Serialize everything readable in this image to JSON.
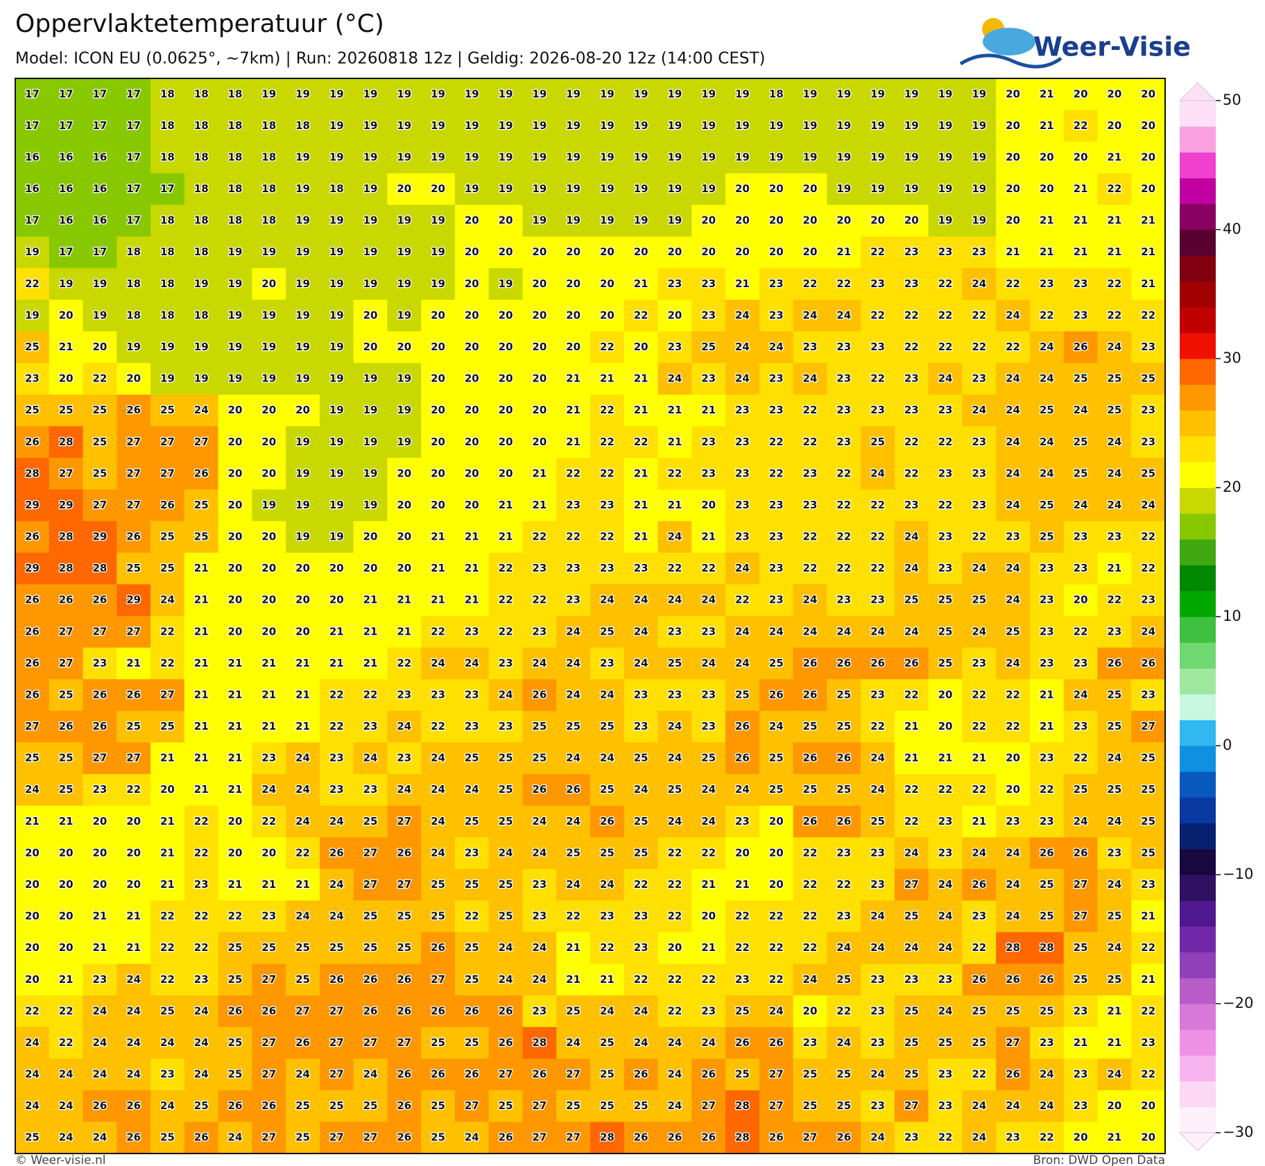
{
  "chart_data": {
    "type": "heatmap",
    "title": "Oppervlaktetemperatuur (°C)",
    "subtitle": "Model: ICON EU (0.0625°, ~7km)  |  Run: 20260818 12z  |  Geldig: 2026-08-20 12z (14:00 CEST)",
    "logo": "Weer-Visie",
    "footer_left": "© Weer-visie.nl",
    "footer_right": "Bron: DWD Open Data",
    "values": [
      [
        17,
        17,
        17,
        17,
        18,
        18,
        18,
        19,
        19,
        19,
        19,
        19,
        19,
        19,
        19,
        19,
        19,
        19,
        19,
        19,
        19,
        19,
        18,
        19,
        19,
        19,
        19,
        19,
        19,
        20,
        21,
        20,
        20,
        20
      ],
      [
        17,
        17,
        17,
        17,
        18,
        18,
        18,
        18,
        18,
        19,
        19,
        19,
        19,
        19,
        19,
        19,
        19,
        19,
        19,
        19,
        19,
        19,
        19,
        19,
        19,
        19,
        19,
        19,
        19,
        20,
        21,
        22,
        20,
        20
      ],
      [
        16,
        16,
        16,
        17,
        18,
        18,
        18,
        18,
        19,
        19,
        19,
        19,
        19,
        19,
        19,
        19,
        19,
        19,
        19,
        19,
        19,
        19,
        19,
        19,
        19,
        19,
        19,
        19,
        19,
        20,
        20,
        20,
        21,
        20
      ],
      [
        16,
        16,
        16,
        17,
        17,
        18,
        18,
        18,
        19,
        18,
        19,
        20,
        20,
        19,
        19,
        19,
        19,
        19,
        19,
        19,
        19,
        20,
        20,
        20,
        19,
        19,
        19,
        19,
        19,
        20,
        20,
        21,
        22,
        20
      ],
      [
        17,
        16,
        16,
        17,
        18,
        18,
        18,
        18,
        19,
        19,
        19,
        19,
        19,
        20,
        20,
        19,
        19,
        19,
        19,
        19,
        20,
        20,
        20,
        20,
        20,
        20,
        20,
        19,
        19,
        20,
        21,
        21,
        21,
        21
      ],
      [
        19,
        17,
        17,
        18,
        18,
        18,
        19,
        19,
        19,
        19,
        19,
        19,
        19,
        20,
        20,
        20,
        20,
        20,
        20,
        20,
        20,
        20,
        20,
        20,
        21,
        22,
        23,
        23,
        23,
        21,
        21,
        21,
        21,
        21
      ],
      [
        22,
        19,
        19,
        18,
        18,
        19,
        19,
        20,
        19,
        19,
        19,
        19,
        19,
        20,
        19,
        20,
        20,
        20,
        21,
        23,
        23,
        21,
        23,
        22,
        22,
        23,
        23,
        22,
        24,
        22,
        23,
        23,
        22,
        21
      ],
      [
        19,
        20,
        19,
        18,
        18,
        18,
        19,
        19,
        19,
        19,
        20,
        19,
        20,
        20,
        20,
        20,
        20,
        20,
        22,
        20,
        23,
        24,
        23,
        24,
        24,
        22,
        22,
        22,
        22,
        24,
        22,
        23,
        22,
        22
      ],
      [
        25,
        21,
        20,
        19,
        19,
        19,
        19,
        19,
        19,
        19,
        20,
        20,
        20,
        20,
        20,
        20,
        20,
        22,
        20,
        23,
        25,
        24,
        24,
        23,
        23,
        23,
        22,
        22,
        22,
        22,
        24,
        26,
        24,
        23
      ],
      [
        23,
        20,
        22,
        20,
        19,
        19,
        19,
        19,
        19,
        19,
        19,
        19,
        20,
        20,
        20,
        20,
        21,
        21,
        21,
        24,
        23,
        24,
        23,
        24,
        23,
        22,
        23,
        24,
        23,
        24,
        24,
        25,
        25,
        25
      ],
      [
        25,
        25,
        25,
        26,
        25,
        24,
        20,
        20,
        20,
        19,
        19,
        19,
        20,
        20,
        20,
        20,
        21,
        22,
        21,
        21,
        21,
        23,
        23,
        22,
        23,
        23,
        23,
        23,
        24,
        24,
        25,
        24,
        25,
        23
      ],
      [
        26,
        28,
        25,
        27,
        27,
        27,
        20,
        20,
        19,
        19,
        19,
        19,
        20,
        20,
        20,
        20,
        21,
        22,
        22,
        21,
        23,
        23,
        22,
        22,
        23,
        25,
        22,
        22,
        23,
        24,
        24,
        25,
        24,
        23
      ],
      [
        28,
        27,
        25,
        27,
        27,
        26,
        20,
        20,
        19,
        19,
        19,
        20,
        20,
        20,
        20,
        21,
        22,
        22,
        21,
        22,
        23,
        23,
        22,
        23,
        22,
        24,
        22,
        23,
        23,
        24,
        24,
        25,
        24,
        25
      ],
      [
        29,
        29,
        27,
        27,
        26,
        25,
        20,
        19,
        19,
        19,
        19,
        20,
        20,
        20,
        21,
        21,
        23,
        23,
        21,
        21,
        20,
        23,
        23,
        23,
        22,
        22,
        23,
        22,
        23,
        24,
        25,
        24,
        24,
        24
      ],
      [
        26,
        28,
        29,
        26,
        25,
        25,
        20,
        20,
        19,
        19,
        20,
        20,
        21,
        21,
        21,
        22,
        22,
        22,
        21,
        24,
        21,
        23,
        23,
        22,
        22,
        22,
        24,
        23,
        22,
        23,
        25,
        23,
        23,
        22
      ],
      [
        29,
        28,
        28,
        25,
        25,
        21,
        20,
        20,
        20,
        20,
        20,
        20,
        21,
        21,
        22,
        23,
        23,
        23,
        23,
        22,
        22,
        24,
        23,
        22,
        22,
        22,
        24,
        23,
        24,
        24,
        23,
        23,
        21,
        22
      ],
      [
        26,
        26,
        26,
        29,
        24,
        21,
        20,
        20,
        20,
        20,
        21,
        21,
        21,
        21,
        22,
        22,
        23,
        24,
        24,
        24,
        24,
        22,
        23,
        24,
        23,
        23,
        25,
        25,
        25,
        24,
        23,
        20,
        22,
        23
      ],
      [
        26,
        27,
        27,
        27,
        22,
        21,
        20,
        20,
        20,
        21,
        21,
        21,
        22,
        23,
        22,
        23,
        24,
        25,
        24,
        23,
        23,
        24,
        24,
        24,
        24,
        24,
        24,
        25,
        24,
        25,
        23,
        22,
        23,
        24
      ],
      [
        26,
        27,
        23,
        21,
        22,
        21,
        21,
        21,
        21,
        21,
        21,
        22,
        24,
        24,
        23,
        24,
        24,
        23,
        24,
        25,
        24,
        24,
        25,
        26,
        26,
        26,
        26,
        25,
        23,
        24,
        23,
        23,
        26,
        26
      ],
      [
        26,
        25,
        26,
        26,
        27,
        21,
        21,
        21,
        21,
        22,
        22,
        23,
        23,
        23,
        24,
        26,
        24,
        24,
        23,
        23,
        23,
        25,
        26,
        26,
        25,
        23,
        22,
        20,
        22,
        22,
        21,
        24,
        25,
        23
      ],
      [
        27,
        26,
        26,
        25,
        25,
        21,
        21,
        21,
        21,
        22,
        23,
        24,
        22,
        23,
        23,
        25,
        25,
        25,
        23,
        24,
        23,
        26,
        24,
        25,
        25,
        22,
        21,
        20,
        22,
        22,
        21,
        23,
        25,
        27
      ],
      [
        25,
        25,
        27,
        27,
        21,
        21,
        21,
        23,
        24,
        23,
        24,
        23,
        24,
        25,
        25,
        25,
        24,
        24,
        25,
        24,
        25,
        26,
        25,
        26,
        26,
        24,
        21,
        21,
        21,
        20,
        23,
        22,
        24,
        25
      ],
      [
        24,
        25,
        23,
        22,
        20,
        21,
        21,
        24,
        24,
        23,
        23,
        24,
        24,
        24,
        25,
        26,
        26,
        25,
        24,
        25,
        24,
        24,
        25,
        25,
        25,
        24,
        22,
        22,
        22,
        20,
        22,
        25,
        25,
        25
      ],
      [
        21,
        21,
        20,
        20,
        21,
        22,
        20,
        22,
        24,
        24,
        25,
        27,
        24,
        25,
        25,
        24,
        24,
        26,
        25,
        24,
        24,
        23,
        20,
        26,
        26,
        25,
        22,
        23,
        21,
        23,
        23,
        24,
        24,
        25
      ],
      [
        20,
        20,
        20,
        20,
        21,
        22,
        20,
        20,
        22,
        26,
        27,
        26,
        24,
        23,
        24,
        24,
        25,
        25,
        25,
        22,
        22,
        20,
        20,
        22,
        23,
        23,
        24,
        23,
        24,
        24,
        26,
        26,
        23,
        25
      ],
      [
        20,
        20,
        20,
        20,
        21,
        23,
        21,
        21,
        21,
        24,
        27,
        27,
        25,
        25,
        25,
        23,
        24,
        24,
        22,
        22,
        21,
        21,
        20,
        22,
        22,
        23,
        27,
        24,
        26,
        24,
        25,
        27,
        24,
        23
      ],
      [
        20,
        20,
        21,
        21,
        22,
        22,
        22,
        23,
        24,
        24,
        25,
        25,
        25,
        22,
        25,
        23,
        22,
        23,
        23,
        22,
        20,
        22,
        22,
        22,
        23,
        24,
        25,
        24,
        23,
        24,
        25,
        27,
        25,
        21
      ],
      [
        20,
        20,
        21,
        21,
        22,
        22,
        25,
        25,
        25,
        25,
        25,
        25,
        26,
        25,
        24,
        24,
        21,
        22,
        23,
        20,
        21,
        22,
        22,
        22,
        24,
        24,
        24,
        24,
        22,
        28,
        28,
        25,
        24,
        22
      ],
      [
        20,
        21,
        23,
        24,
        22,
        23,
        25,
        27,
        25,
        26,
        26,
        26,
        27,
        25,
        24,
        24,
        21,
        21,
        22,
        22,
        22,
        23,
        22,
        24,
        25,
        23,
        23,
        23,
        26,
        26,
        26,
        25,
        25,
        21
      ],
      [
        22,
        22,
        24,
        24,
        25,
        24,
        26,
        26,
        27,
        27,
        26,
        26,
        26,
        26,
        26,
        23,
        25,
        24,
        24,
        22,
        23,
        25,
        24,
        20,
        22,
        23,
        25,
        24,
        25,
        25,
        25,
        23,
        21,
        22
      ],
      [
        24,
        22,
        24,
        24,
        24,
        24,
        25,
        27,
        26,
        27,
        27,
        27,
        25,
        25,
        26,
        28,
        24,
        25,
        24,
        24,
        24,
        26,
        26,
        23,
        24,
        23,
        25,
        25,
        25,
        27,
        23,
        21,
        21,
        23
      ],
      [
        24,
        24,
        24,
        24,
        23,
        24,
        25,
        27,
        24,
        27,
        24,
        26,
        26,
        26,
        27,
        26,
        27,
        25,
        26,
        24,
        26,
        25,
        27,
        25,
        25,
        24,
        25,
        23,
        22,
        26,
        24,
        23,
        24,
        22
      ],
      [
        24,
        24,
        26,
        26,
        24,
        25,
        26,
        26,
        25,
        25,
        25,
        26,
        25,
        27,
        25,
        27,
        25,
        25,
        25,
        24,
        27,
        28,
        27,
        25,
        25,
        23,
        27,
        23,
        24,
        24,
        24,
        23,
        20,
        20
      ],
      [
        25,
        24,
        24,
        26,
        25,
        26,
        24,
        27,
        25,
        27,
        27,
        26,
        25,
        24,
        26,
        27,
        27,
        28,
        26,
        26,
        26,
        28,
        26,
        27,
        26,
        24,
        23,
        22,
        24,
        23,
        22,
        20,
        21,
        20
      ]
    ],
    "clim": [
      -30,
      50
    ],
    "cticks": [
      {
        "value": -30,
        "label": "−30"
      },
      {
        "value": -20,
        "label": "−20"
      },
      {
        "value": -10,
        "label": "−10"
      },
      0,
      10,
      20,
      30,
      40,
      50
    ],
    "colors": [
      "#fdf0fb",
      "#fcd8f5",
      "#f8b4ee",
      "#ee90e6",
      "#d878d8",
      "#b85cc8",
      "#9040b8",
      "#7028a8",
      "#501890",
      "#301060",
      "#180840",
      "#082070",
      "#0838a0",
      "#0858c0",
      "#1090e0",
      "#30b8f0",
      "#c8f8e0",
      "#a0e8a0",
      "#70d870",
      "#40c040",
      "#00a800",
      "#008800",
      "#40a810",
      "#88c800",
      "#c8d800",
      "#ffff00",
      "#ffe000",
      "#ffc000",
      "#ff9800",
      "#ff6800",
      "#f01000",
      "#c00000",
      "#a00000",
      "#800010",
      "#580030",
      "#880060",
      "#c000a0",
      "#f040d0",
      "#f8a0e0",
      "#fde0f5"
    ]
  }
}
